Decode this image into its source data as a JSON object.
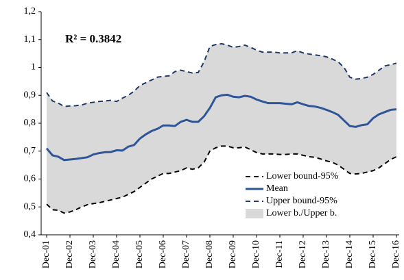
{
  "chart_data": {
    "type": "line",
    "annotation": "R² = 0.3842",
    "categories": [
      "Dec-01",
      null,
      null,
      null,
      "Dec-02",
      null,
      null,
      null,
      "Dec-03",
      null,
      null,
      null,
      "Dec-04",
      null,
      null,
      null,
      "Dec-05",
      null,
      null,
      null,
      "Dec-06",
      null,
      null,
      null,
      "Dec-07",
      null,
      null,
      null,
      "Dec-08",
      null,
      null,
      null,
      "Dec-09",
      null,
      null,
      null,
      "Dec-10",
      null,
      null,
      null,
      "Dec-11",
      null,
      null,
      null,
      "Dec-12",
      null,
      null,
      null,
      "Dec-13",
      null,
      null,
      null,
      "Dec-14",
      null,
      null,
      null,
      "Dec-15",
      null,
      null,
      null,
      "Dec-16"
    ],
    "series": [
      {
        "name": "Lower bound-95%",
        "color": "#000000",
        "style": "dashed",
        "values": [
          0.51,
          0.49,
          0.488,
          0.478,
          0.482,
          0.49,
          0.5,
          0.508,
          0.512,
          0.515,
          0.52,
          0.525,
          0.53,
          0.535,
          0.545,
          0.555,
          0.57,
          0.585,
          0.6,
          0.61,
          0.62,
          0.62,
          0.625,
          0.63,
          0.64,
          0.635,
          0.64,
          0.66,
          0.7,
          0.712,
          0.718,
          0.718,
          0.712,
          0.712,
          0.715,
          0.705,
          0.695,
          0.69,
          0.69,
          0.69,
          0.688,
          0.688,
          0.69,
          0.69,
          0.685,
          0.68,
          0.678,
          0.672,
          0.665,
          0.66,
          0.65,
          0.635,
          0.62,
          0.618,
          0.62,
          0.625,
          0.63,
          0.64,
          0.655,
          0.67,
          0.68
        ]
      },
      {
        "name": "Mean",
        "color": "#2e5597",
        "style": "solid",
        "values": [
          0.71,
          0.685,
          0.68,
          0.668,
          0.67,
          0.672,
          0.675,
          0.678,
          0.688,
          0.693,
          0.696,
          0.697,
          0.703,
          0.702,
          0.716,
          0.722,
          0.745,
          0.76,
          0.772,
          0.78,
          0.792,
          0.792,
          0.79,
          0.805,
          0.812,
          0.805,
          0.805,
          0.825,
          0.855,
          0.893,
          0.9,
          0.902,
          0.895,
          0.893,
          0.898,
          0.895,
          0.885,
          0.878,
          0.872,
          0.872,
          0.872,
          0.87,
          0.868,
          0.875,
          0.868,
          0.862,
          0.86,
          0.855,
          0.848,
          0.84,
          0.83,
          0.81,
          0.79,
          0.787,
          0.793,
          0.796,
          0.818,
          0.832,
          0.84,
          0.848,
          0.85
        ]
      },
      {
        "name": "Upper bound-95%",
        "color": "#1f3864",
        "style": "dashed",
        "values": [
          0.91,
          0.88,
          0.872,
          0.86,
          0.862,
          0.863,
          0.865,
          0.872,
          0.875,
          0.878,
          0.88,
          0.882,
          0.878,
          0.89,
          0.9,
          0.915,
          0.935,
          0.945,
          0.955,
          0.965,
          0.968,
          0.97,
          0.985,
          0.99,
          0.985,
          0.98,
          0.982,
          1.02,
          1.075,
          1.082,
          1.085,
          1.08,
          1.072,
          1.075,
          1.08,
          1.072,
          1.062,
          1.055,
          1.055,
          1.055,
          1.052,
          1.052,
          1.052,
          1.06,
          1.052,
          1.048,
          1.045,
          1.042,
          1.038,
          1.03,
          1.02,
          1.0,
          0.965,
          0.958,
          0.96,
          0.965,
          0.975,
          0.99,
          1.005,
          1.01,
          1.015
        ]
      },
      {
        "name": "Lower b./Upper b.",
        "color": "#d9d9d9",
        "style": "band"
      }
    ],
    "ylim": [
      0.4,
      1.2
    ],
    "yticks": [
      {
        "value": 0.4,
        "label": "0,4"
      },
      {
        "value": 0.5,
        "label": "0,5"
      },
      {
        "value": 0.6,
        "label": "0,6"
      },
      {
        "value": 0.7,
        "label": "0,7"
      },
      {
        "value": 0.8,
        "label": "0,8"
      },
      {
        "value": 0.9,
        "label": "0,9"
      },
      1,
      {
        "value": 1.1,
        "label": "1,1"
      },
      {
        "value": 1.2,
        "label": "1,2"
      }
    ]
  }
}
